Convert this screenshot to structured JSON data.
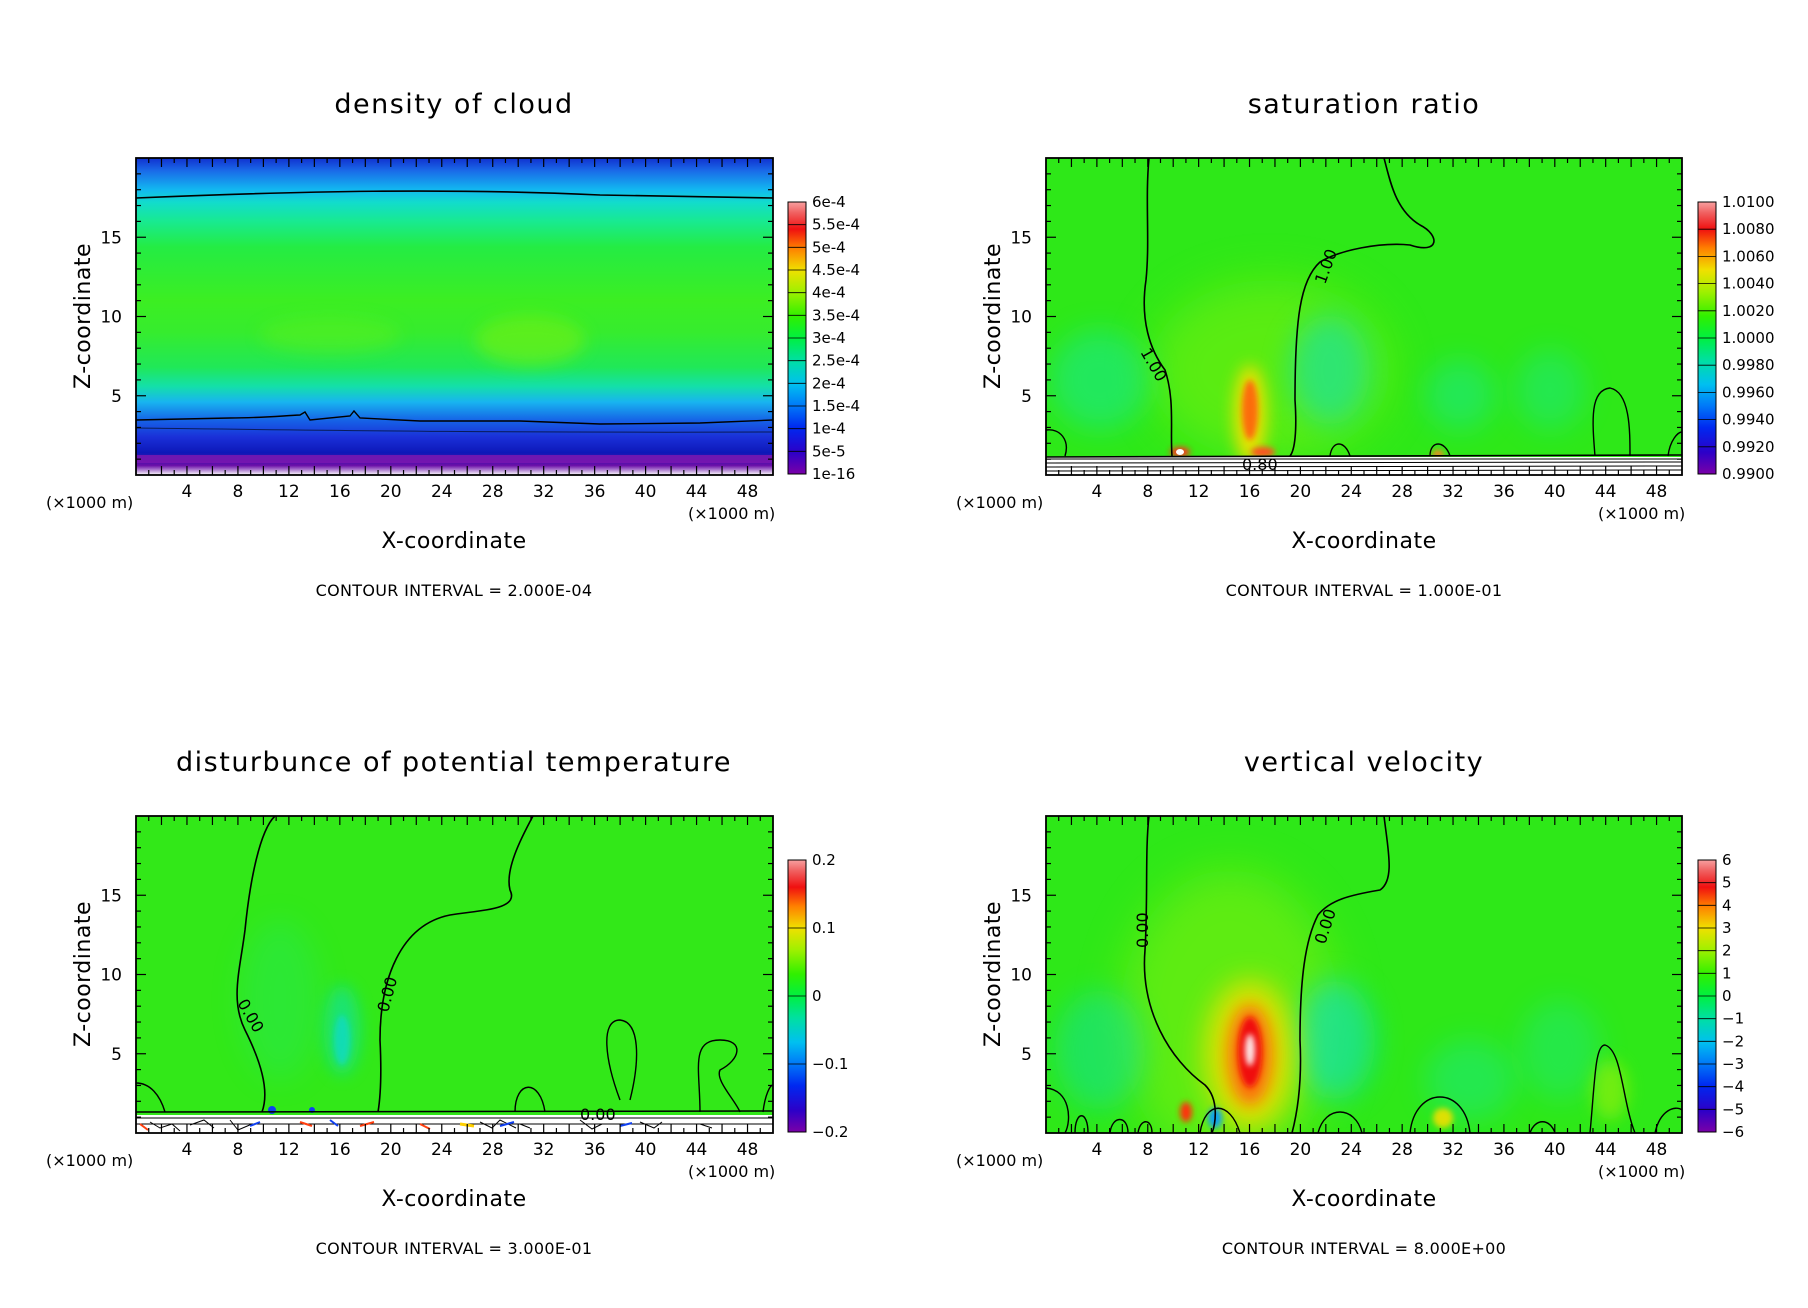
{
  "chart_data": [
    {
      "type": "heatmap",
      "title": "density of cloud",
      "xlabel": "X-coordinate",
      "ylabel": "Z-coordinate",
      "x_unit": "(×1000 m)",
      "z_unit": "(×1000 m)",
      "xlim": [
        0,
        50
      ],
      "ylim": [
        0,
        20
      ],
      "x_ticks": [
        "4",
        "8",
        "12",
        "16",
        "20",
        "24",
        "28",
        "32",
        "36",
        "40",
        "44",
        "48"
      ],
      "y_ticks": [
        "5",
        "10",
        "15"
      ],
      "contour_interval": "CONTOUR INTERVAL = 2.000E-04",
      "colorbar_labels": [
        "6e-4",
        "5.5e-4",
        "5e-4",
        "4.5e-4",
        "4e-4",
        "3.5e-4",
        "3e-4",
        "2.5e-4",
        "2e-4",
        "1.5e-4",
        "1e-4",
        "5e-5",
        "1e-16"
      ],
      "colorbar_range": [
        0,
        0.0006
      ],
      "contour_labels": []
    },
    {
      "type": "heatmap",
      "title": "saturation ratio",
      "xlabel": "X-coordinate",
      "ylabel": "Z-coordinate",
      "x_unit": "(×1000 m)",
      "z_unit": "(×1000 m)",
      "xlim": [
        0,
        50
      ],
      "ylim": [
        0,
        20
      ],
      "x_ticks": [
        "4",
        "8",
        "12",
        "16",
        "20",
        "24",
        "28",
        "32",
        "36",
        "40",
        "44",
        "48"
      ],
      "y_ticks": [
        "5",
        "10",
        "15"
      ],
      "contour_interval": "CONTOUR INTERVAL = 1.000E-01",
      "colorbar_labels": [
        "1.0100",
        "1.0080",
        "1.0060",
        "1.0040",
        "1.0020",
        "1.0000",
        "0.9980",
        "0.9960",
        "0.9940",
        "0.9920",
        "0.9900"
      ],
      "colorbar_range": [
        0.99,
        1.01
      ],
      "contour_labels": [
        "1.00",
        "1.00",
        "0.80"
      ]
    },
    {
      "type": "heatmap",
      "title": "disturbunce of potential temperature",
      "xlabel": "X-coordinate",
      "ylabel": "Z-coordinate",
      "x_unit": "(×1000 m)",
      "z_unit": "(×1000 m)",
      "xlim": [
        0,
        50
      ],
      "ylim": [
        0,
        20
      ],
      "x_ticks": [
        "4",
        "8",
        "12",
        "16",
        "20",
        "24",
        "28",
        "32",
        "36",
        "40",
        "44",
        "48"
      ],
      "y_ticks": [
        "5",
        "10",
        "15"
      ],
      "contour_interval": "CONTOUR INTERVAL = 3.000E-01",
      "colorbar_labels": [
        "0.2",
        "0.1",
        "0",
        "−0.1",
        "−0.2"
      ],
      "colorbar_range": [
        -0.2,
        0.2
      ],
      "contour_labels": [
        "0.00",
        "0.00",
        "0.00"
      ]
    },
    {
      "type": "heatmap",
      "title": "vertical velocity",
      "xlabel": "X-coordinate",
      "ylabel": "Z-coordinate",
      "x_unit": "(×1000 m)",
      "z_unit": "(×1000 m)",
      "xlim": [
        0,
        50
      ],
      "ylim": [
        0,
        20
      ],
      "x_ticks": [
        "4",
        "8",
        "12",
        "16",
        "20",
        "24",
        "28",
        "32",
        "36",
        "40",
        "44",
        "48"
      ],
      "y_ticks": [
        "5",
        "10",
        "15"
      ],
      "contour_interval": "CONTOUR INTERVAL = 8.000E+00",
      "colorbar_labels": [
        "6",
        "5",
        "4",
        "3",
        "2",
        "1",
        "0",
        "−1",
        "−2",
        "−3",
        "−4",
        "−5",
        "−6"
      ],
      "colorbar_range": [
        -6,
        6
      ],
      "contour_labels": [
        "0.00",
        "0.00"
      ]
    }
  ]
}
